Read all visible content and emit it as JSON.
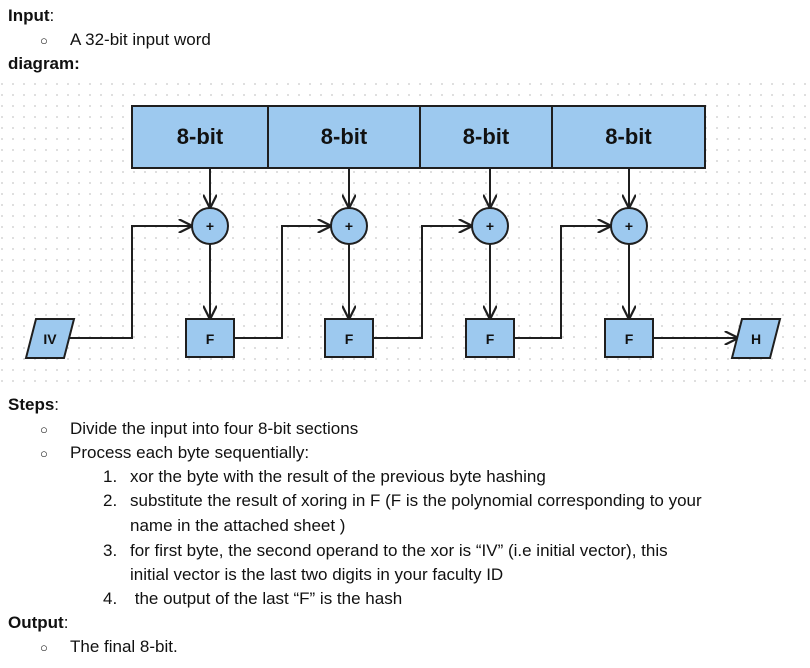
{
  "input": {
    "heading": "Input",
    "colon": ":",
    "bullet": "A 32-bit input word"
  },
  "diagram_heading": "diagram:",
  "diagram": {
    "blocks": [
      "8-bit",
      "8-bit",
      "8-bit",
      "8-bit"
    ],
    "xor_symbol": "+",
    "f_label": "F",
    "iv_label": "IV",
    "h_label": "H",
    "colors": {
      "fill": "#9dc9ef",
      "stroke": "#1f1f1f",
      "dot": "#c8c8c8"
    }
  },
  "steps": {
    "heading": "Steps",
    "colon": ":",
    "bullet_symbol": "○",
    "bullets": [
      "Divide the input into four 8-bit sections",
      "Process each byte sequentially:"
    ],
    "numbered": [
      {
        "num": "1.",
        "lines": [
          "xor the byte with the result of the previous byte hashing"
        ]
      },
      {
        "num": "2.",
        "lines": [
          "substitute the result of xoring in F (F is the polynomial corresponding to your",
          "name in the attached sheet )"
        ]
      },
      {
        "num": "3.",
        "lines": [
          "for first byte, the second operand to the xor is “IV” (i.e initial vector), this",
          "initial vector is the last two digits in your faculty ID"
        ]
      },
      {
        "num": "4.",
        "lines": [
          " the output of the last “F” is the hash"
        ]
      }
    ]
  },
  "output": {
    "heading": "Output",
    "colon": ":",
    "bullet": "The final 8-bit."
  }
}
